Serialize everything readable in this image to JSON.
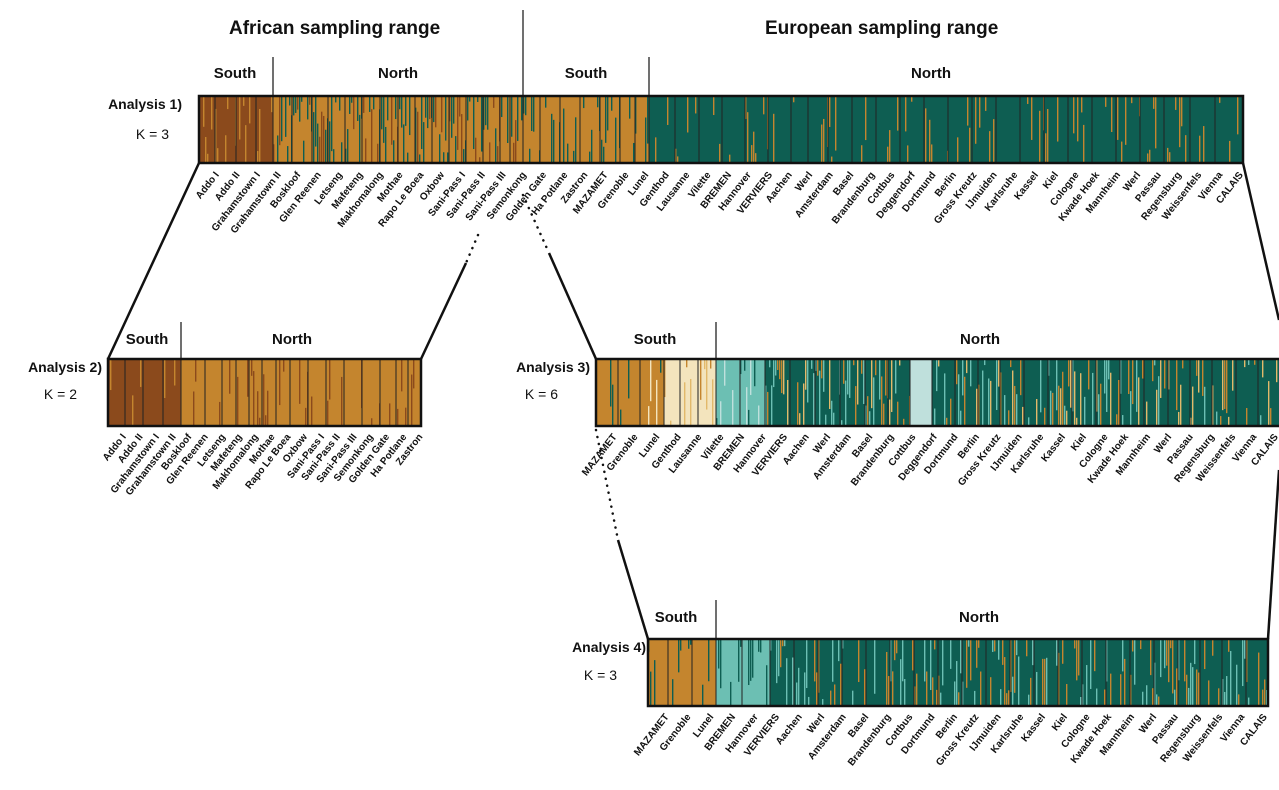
{
  "headers": {
    "african": "African sampling range",
    "european": "European sampling range"
  },
  "analyses": [
    {
      "id": "a1",
      "title": "Analysis 1)",
      "k": "K = 3",
      "regions": [
        "South",
        "North",
        "South",
        "North"
      ],
      "colors": [
        "#8b4a1c",
        "#c4852e",
        "#0e5e52"
      ],
      "labels": [
        "Addo I",
        "Addo II",
        "Grahamstown I",
        "Grahamstown II",
        "Boskloof",
        "Glen Reenen",
        "Letseng",
        "Mafeteng",
        "Makhomalong",
        "Mothae",
        "Rapo Le Boea",
        "Oxbow",
        "Sani-Pass I",
        "Sani-Pass II",
        "Sani-Pass III",
        "Semonkong",
        "Golden Gate",
        "Ha Potlane",
        "Zastron",
        "MAZAMET",
        "Grenoble",
        "Lunel",
        "Genthod",
        "Lausanne",
        "Vilette",
        "BREMEN",
        "Hannover",
        "VERVIERS",
        "Aachen",
        "Werl",
        "Amsterdam",
        "Basel",
        "Brandenburg",
        "Cottbus",
        "Deggendorf",
        "Dortmund",
        "Berlin",
        "Gross Kreutz",
        "IJmuiden",
        "Karlsruhe",
        "Kassel",
        "Kiel",
        "Cologne",
        "Kwade Hoek",
        "Mannheim",
        "Werl",
        "Passau",
        "Regensburg",
        "Weissenfels",
        "Vienna",
        "CALAIS"
      ]
    },
    {
      "id": "a2",
      "title": "Analysis 2)",
      "k": "K = 2",
      "regions": [
        "South",
        "North"
      ],
      "colors": [
        "#8b4a1c",
        "#c4852e"
      ],
      "labels": [
        "Addo I",
        "Addo II",
        "Grahamstown I",
        "Grahamstown II",
        "Boskloof",
        "Glen Reenen",
        "Letseng",
        "Mafeteng",
        "Makhomalong",
        "Mothae",
        "Rapo Le Boea",
        "Oxbow",
        "Sani-Pass I",
        "Sani-Pass II",
        "Sani-Pass III",
        "Semonkong",
        "Golden Gate",
        "Ha Potlane",
        "Zastron"
      ]
    },
    {
      "id": "a3",
      "title": "Analysis 3)",
      "k": "K = 6",
      "regions": [
        "South",
        "North"
      ],
      "colors": [
        "#c4852e",
        "#f3e4bd",
        "#6cbfb3",
        "#0e5e52",
        "#bfe0dc",
        "#e2b96a"
      ],
      "labels": [
        "MAZAMET",
        "Grenoble",
        "Lunel",
        "Genthod",
        "Lausanne",
        "Vilette",
        "BREMEN",
        "Hannover",
        "VERVIERS",
        "Aachen",
        "Werl",
        "Amsterdam",
        "Basel",
        "Brandenburg",
        "Cottbus",
        "Deggendorf",
        "Dortmund",
        "Berlin",
        "Gross Kreutz",
        "IJmuiden",
        "Karlsruhe",
        "Kassel",
        "Kiel",
        "Cologne",
        "Kwade Hoek",
        "Mannheim",
        "Werl",
        "Passau",
        "Regensburg",
        "Weissenfels",
        "Vienna",
        "CALAIS"
      ]
    },
    {
      "id": "a4",
      "title": "Analysis 4)",
      "k": "K = 3",
      "regions": [
        "South",
        "North"
      ],
      "colors": [
        "#c4852e",
        "#6cbfb3",
        "#0e5e52"
      ],
      "labels": [
        "MAZAMET",
        "Grenoble",
        "Lunel",
        "BREMEN",
        "Hannover",
        "VERVIERS",
        "Aachen",
        "Werl",
        "Amsterdam",
        "Basel",
        "Brandenburg",
        "Cottbus",
        "Dortmund",
        "Berlin",
        "Gross Kreutz",
        "IJmuiden",
        "Karlsruhe",
        "Kassel",
        "Kiel",
        "Cologne",
        "Kwade Hoek",
        "Mannheim",
        "Werl",
        "Passau",
        "Regensburg",
        "Weissenfels",
        "Vienna",
        "CALAIS"
      ]
    }
  ]
}
